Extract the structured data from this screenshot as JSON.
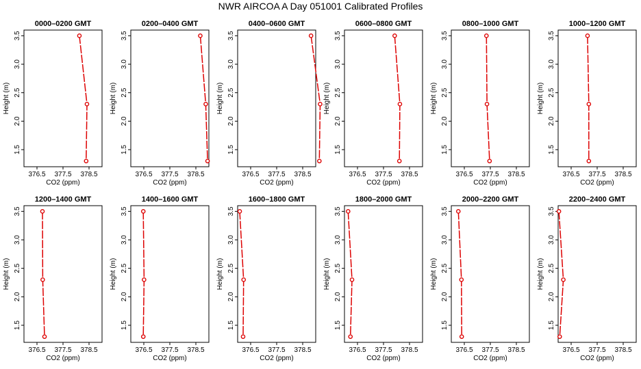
{
  "title": "NWR AIRCOA A  Day 051001  Calibrated Profiles",
  "colors": {
    "series": "#dd0000",
    "axes": "#000000"
  },
  "chart_data": [
    {
      "type": "line",
      "title": "0000–0200 GMT",
      "xlabel": "CO2 (ppm)",
      "ylabel": "Height (m)",
      "xlim": [
        376.0,
        379.0
      ],
      "ylim": [
        1.2,
        3.6
      ],
      "xticks": [
        "376.5",
        "377.5",
        "378.5"
      ],
      "yticks": [
        "1.5",
        "2.0",
        "2.5",
        "3.0",
        "3.5"
      ],
      "points": [
        {
          "x": 378.13,
          "y": 3.5
        },
        {
          "x": 378.42,
          "y": 2.3
        },
        {
          "x": 378.39,
          "y": 1.3
        }
      ]
    },
    {
      "type": "line",
      "title": "0200–0400 GMT",
      "xlabel": "CO2 (ppm)",
      "ylabel": "Height (m)",
      "xlim": [
        376.0,
        379.0
      ],
      "ylim": [
        1.2,
        3.6
      ],
      "xticks": [
        "376.5",
        "377.5",
        "378.5"
      ],
      "yticks": [
        "1.5",
        "2.0",
        "2.5",
        "3.0",
        "3.5"
      ],
      "points": [
        {
          "x": 378.67,
          "y": 3.5
        },
        {
          "x": 378.88,
          "y": 2.3
        },
        {
          "x": 378.95,
          "y": 1.3
        }
      ]
    },
    {
      "type": "line",
      "title": "0400–0600 GMT",
      "xlabel": "CO2 (ppm)",
      "ylabel": "Height (m)",
      "xlim": [
        376.0,
        379.0
      ],
      "ylim": [
        1.2,
        3.6
      ],
      "xticks": [
        "376.5",
        "377.5",
        "378.5"
      ],
      "yticks": [
        "1.5",
        "2.0",
        "2.5",
        "3.0",
        "3.5"
      ],
      "points": [
        {
          "x": 378.82,
          "y": 3.5
        },
        {
          "x": 379.17,
          "y": 2.3
        },
        {
          "x": 379.14,
          "y": 1.3
        }
      ]
    },
    {
      "type": "line",
      "title": "0600–0800 GMT",
      "xlabel": "CO2 (ppm)",
      "ylabel": "Height (m)",
      "xlim": [
        376.0,
        379.0
      ],
      "ylim": [
        1.2,
        3.6
      ],
      "xticks": [
        "376.5",
        "377.5",
        "378.5"
      ],
      "yticks": [
        "1.5",
        "2.0",
        "2.5",
        "3.0",
        "3.5"
      ],
      "points": [
        {
          "x": 377.93,
          "y": 3.5
        },
        {
          "x": 378.13,
          "y": 2.3
        },
        {
          "x": 378.11,
          "y": 1.3
        }
      ]
    },
    {
      "type": "line",
      "title": "0800–1000 GMT",
      "xlabel": "CO2 (ppm)",
      "ylabel": "Height (m)",
      "xlim": [
        376.0,
        379.0
      ],
      "ylim": [
        1.2,
        3.6
      ],
      "xticks": [
        "376.5",
        "377.5",
        "378.5"
      ],
      "yticks": [
        "1.5",
        "2.0",
        "2.5",
        "3.0",
        "3.5"
      ],
      "points": [
        {
          "x": 377.35,
          "y": 3.5
        },
        {
          "x": 377.37,
          "y": 2.3
        },
        {
          "x": 377.47,
          "y": 1.3
        }
      ]
    },
    {
      "type": "line",
      "title": "1000–1200 GMT",
      "xlabel": "CO2 (ppm)",
      "ylabel": "Height (m)",
      "xlim": [
        376.0,
        379.0
      ],
      "ylim": [
        1.2,
        3.6
      ],
      "xticks": [
        "376.5",
        "377.5",
        "378.5"
      ],
      "yticks": [
        "1.5",
        "2.0",
        "2.5",
        "3.0",
        "3.5"
      ],
      "points": [
        {
          "x": 377.13,
          "y": 3.5
        },
        {
          "x": 377.18,
          "y": 2.3
        },
        {
          "x": 377.18,
          "y": 1.3
        }
      ]
    },
    {
      "type": "line",
      "title": "1200–1400 GMT",
      "xlabel": "CO2 (ppm)",
      "ylabel": "Height (m)",
      "xlim": [
        376.0,
        379.0
      ],
      "ylim": [
        1.2,
        3.6
      ],
      "xticks": [
        "376.5",
        "377.5",
        "378.5"
      ],
      "yticks": [
        "1.5",
        "2.0",
        "2.5",
        "3.0",
        "3.5"
      ],
      "points": [
        {
          "x": 376.71,
          "y": 3.5
        },
        {
          "x": 376.72,
          "y": 2.3
        },
        {
          "x": 376.79,
          "y": 1.3
        }
      ]
    },
    {
      "type": "line",
      "title": "1400–1600 GMT",
      "xlabel": "CO2 (ppm)",
      "ylabel": "Height (m)",
      "xlim": [
        376.0,
        379.0
      ],
      "ylim": [
        1.2,
        3.6
      ],
      "xticks": [
        "376.5",
        "377.5",
        "378.5"
      ],
      "yticks": [
        "1.5",
        "2.0",
        "2.5",
        "3.0",
        "3.5"
      ],
      "points": [
        {
          "x": 376.48,
          "y": 3.5
        },
        {
          "x": 376.51,
          "y": 2.3
        },
        {
          "x": 376.48,
          "y": 1.3
        }
      ]
    },
    {
      "type": "line",
      "title": "1600–1800 GMT",
      "xlabel": "CO2 (ppm)",
      "ylabel": "Height (m)",
      "xlim": [
        376.0,
        379.0
      ],
      "ylim": [
        1.2,
        3.6
      ],
      "xticks": [
        "376.5",
        "377.5",
        "378.5"
      ],
      "yticks": [
        "1.5",
        "2.0",
        "2.5",
        "3.0",
        "3.5"
      ],
      "points": [
        {
          "x": 376.08,
          "y": 3.5
        },
        {
          "x": 376.23,
          "y": 2.3
        },
        {
          "x": 376.21,
          "y": 1.3
        }
      ]
    },
    {
      "type": "line",
      "title": "1800–2000 GMT",
      "xlabel": "CO2 (ppm)",
      "ylabel": "Height (m)",
      "xlim": [
        376.0,
        379.0
      ],
      "ylim": [
        1.2,
        3.6
      ],
      "xticks": [
        "376.5",
        "377.5",
        "378.5"
      ],
      "yticks": [
        "1.5",
        "2.0",
        "2.5",
        "3.0",
        "3.5"
      ],
      "points": [
        {
          "x": 376.14,
          "y": 3.5
        },
        {
          "x": 376.29,
          "y": 2.3
        },
        {
          "x": 376.23,
          "y": 1.3
        }
      ]
    },
    {
      "type": "line",
      "title": "2000–2200 GMT",
      "xlabel": "CO2 (ppm)",
      "ylabel": "Height (m)",
      "xlim": [
        376.0,
        379.0
      ],
      "ylim": [
        1.2,
        3.6
      ],
      "xticks": [
        "376.5",
        "377.5",
        "378.5"
      ],
      "yticks": [
        "1.5",
        "2.0",
        "2.5",
        "3.0",
        "3.5"
      ],
      "points": [
        {
          "x": 376.27,
          "y": 3.5
        },
        {
          "x": 376.39,
          "y": 2.3
        },
        {
          "x": 376.4,
          "y": 1.3
        }
      ]
    },
    {
      "type": "line",
      "title": "2200–2400 GMT",
      "xlabel": "CO2 (ppm)",
      "ylabel": "Height (m)",
      "xlim": [
        376.0,
        379.0
      ],
      "ylim": [
        1.2,
        3.6
      ],
      "xticks": [
        "376.5",
        "377.5",
        "378.5"
      ],
      "yticks": [
        "1.5",
        "2.0",
        "2.5",
        "3.0",
        "3.5"
      ],
      "points": [
        {
          "x": 376.03,
          "y": 3.5
        },
        {
          "x": 376.2,
          "y": 2.3
        },
        {
          "x": 376.06,
          "y": 1.3
        }
      ]
    }
  ]
}
